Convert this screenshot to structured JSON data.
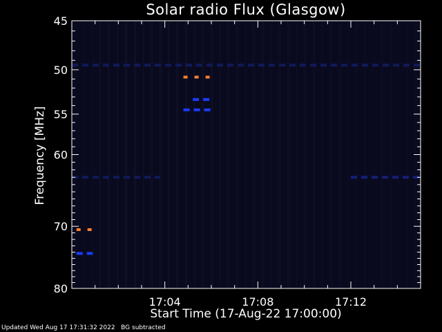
{
  "chart_data": {
    "type": "heatmap",
    "title": "Solar radio Flux (Glasgow)",
    "xlabel": "Start Time (17-Aug-22 17:00:00)",
    "ylabel": "Frequency [MHz]",
    "x_range_minutes": [
      0,
      15
    ],
    "y_range": [
      45,
      80
    ],
    "y_inverted": true,
    "y_scale": "log",
    "x_ticks": [
      {
        "minute": 4,
        "label": "17:04"
      },
      {
        "minute": 8,
        "label": "17:08"
      },
      {
        "minute": 12,
        "label": "17:12"
      }
    ],
    "y_ticks": [
      45,
      50,
      55,
      60,
      70,
      80
    ],
    "background_color": "#0a0a1e",
    "axis_color": "#ffffff",
    "features": [
      {
        "minute_start": 4.8,
        "minute_end": 6.1,
        "freq": 50.8,
        "color": "#ff7f2a"
      },
      {
        "minute_start": 4.8,
        "minute_end": 6.1,
        "freq": 54.5,
        "color": "#1a3cff"
      },
      {
        "minute_start": 5.2,
        "minute_end": 6.1,
        "freq": 53.3,
        "color": "#1a3cff"
      },
      {
        "minute_start": 0.2,
        "minute_end": 0.9,
        "freq": 70.5,
        "color": "#ff7f2a"
      },
      {
        "minute_start": 0.2,
        "minute_end": 0.9,
        "freq": 74.2,
        "color": "#1a3cff"
      },
      {
        "minute_start": 12.0,
        "minute_end": 15.0,
        "freq": 63.0,
        "color": "#14207a"
      },
      {
        "minute_start": 0.0,
        "minute_end": 3.8,
        "freq": 63.0,
        "color": "#101a5a"
      },
      {
        "minute_start": 0.0,
        "minute_end": 15.0,
        "freq": 49.5,
        "color": "#101a5a"
      }
    ]
  },
  "footer": {
    "text": "Updated Wed Aug 17 17:31:32 2022   BG subtracted"
  }
}
